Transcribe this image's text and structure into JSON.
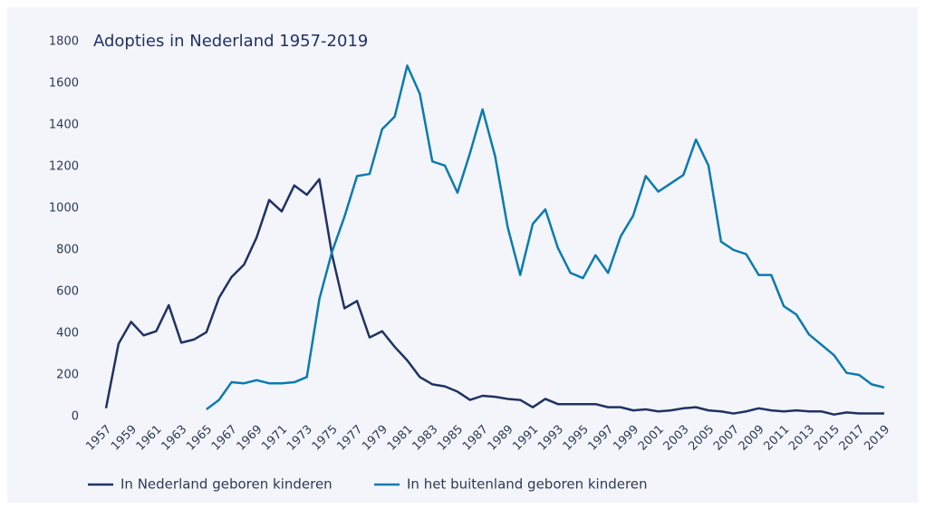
{
  "chart_data": {
    "type": "line",
    "title": "Adopties in Nederland 1957-2019",
    "categories": [
      "1957",
      null,
      "1959",
      null,
      "1961",
      null,
      "1963",
      null,
      "1965",
      null,
      "1967",
      null,
      "1969",
      null,
      "1971",
      null,
      "1973",
      null,
      "1975",
      null,
      "1977",
      null,
      "1979",
      null,
      "1981",
      null,
      "1983",
      null,
      "1985",
      null,
      "1987",
      null,
      "1989",
      null,
      "1991",
      null,
      "1993",
      null,
      "1995",
      null,
      "1997",
      null,
      "1999",
      null,
      "2001",
      null,
      "2003",
      null,
      "2005",
      null,
      "2007",
      null,
      "2009",
      null,
      "2011",
      null,
      "2013",
      null,
      "2015",
      null,
      "2017",
      null,
      "2019"
    ],
    "series": [
      {
        "name": "In Nederland geboren kinderen",
        "color": "#1f3264",
        "values": [
          40,
          350,
          455,
          390,
          410,
          535,
          355,
          370,
          405,
          570,
          670,
          730,
          860,
          1040,
          985,
          1110,
          1065,
          1140,
          780,
          520,
          555,
          380,
          410,
          335,
          270,
          190,
          155,
          145,
          120,
          80,
          100,
          95,
          85,
          80,
          45,
          85,
          60,
          60,
          60,
          60,
          45,
          45,
          30,
          35,
          25,
          30,
          40,
          45,
          30,
          25,
          15,
          25,
          40,
          30,
          25,
          30,
          25,
          25,
          10,
          20,
          15,
          15,
          15
        ]
      },
      {
        "name": "In het buitenland geboren kinderen",
        "color": "#0a7bb0",
        "values": [
          null,
          null,
          null,
          null,
          null,
          null,
          null,
          null,
          35,
          80,
          165,
          160,
          175,
          160,
          160,
          165,
          190,
          565,
          790,
          960,
          1155,
          1165,
          1380,
          1440,
          1685,
          1550,
          1225,
          1205,
          1075,
          1265,
          1475,
          1250,
          910,
          680,
          925,
          995,
          810,
          690,
          665,
          775,
          690,
          865,
          965,
          1155,
          1080,
          1120,
          1160,
          1330,
          1205,
          840,
          800,
          780,
          680,
          680,
          530,
          490,
          395,
          345,
          295,
          210,
          200,
          155,
          140
        ]
      }
    ],
    "ylim": [
      0,
      1800
    ],
    "yticks": [
      0,
      200,
      400,
      600,
      800,
      1000,
      1200,
      1400,
      1600,
      1800
    ],
    "grid": false
  }
}
